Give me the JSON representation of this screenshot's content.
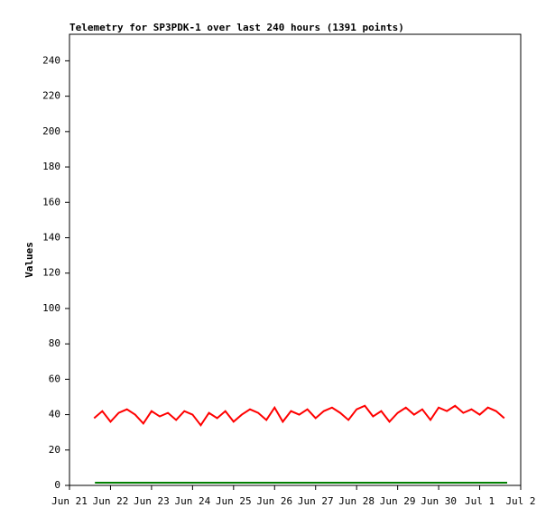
{
  "chart_data": {
    "type": "line",
    "title": "Telemetry for SP3PDK-1 over last 240 hours (1391 points)",
    "y_label": "Values",
    "xlim": [
      21,
      32
    ],
    "ylim": [
      0,
      255
    ],
    "xticks": [
      {
        "value": 21,
        "label": "Jun 21"
      },
      {
        "value": 22,
        "label": "Jun 22"
      },
      {
        "value": 23,
        "label": "Jun 23"
      },
      {
        "value": 24,
        "label": "Jun 24"
      },
      {
        "value": 25,
        "label": "Jun 25"
      },
      {
        "value": 26,
        "label": "Jun 26"
      },
      {
        "value": 27,
        "label": "Jun 27"
      },
      {
        "value": 28,
        "label": "Jun 28"
      },
      {
        "value": 29,
        "label": "Jun 29"
      },
      {
        "value": 30,
        "label": "Jun 30"
      },
      {
        "value": 31,
        "label": "Jul 1"
      },
      {
        "value": 32,
        "label": "Jul 2"
      }
    ],
    "yticks": [
      0,
      20,
      40,
      60,
      80,
      100,
      120,
      140,
      160,
      180,
      200,
      220,
      240
    ],
    "series": [
      {
        "color": "#ff0000",
        "x": [
          21.6,
          21.8,
          22.0,
          22.2,
          22.4,
          22.6,
          22.8,
          23.0,
          23.2,
          23.4,
          23.6,
          23.8,
          24.0,
          24.2,
          24.4,
          24.6,
          24.8,
          25.0,
          25.2,
          25.4,
          25.6,
          25.8,
          26.0,
          26.2,
          26.4,
          26.6,
          26.8,
          27.0,
          27.2,
          27.4,
          27.6,
          27.8,
          28.0,
          28.2,
          28.4,
          28.6,
          28.8,
          29.0,
          29.2,
          29.4,
          29.6,
          29.8,
          30.0,
          30.2,
          30.4,
          30.6,
          30.8,
          31.0,
          31.2,
          31.4,
          31.6
        ],
        "values": [
          38,
          42,
          36,
          41,
          43,
          40,
          35,
          42,
          39,
          41,
          37,
          42,
          40,
          34,
          41,
          38,
          42,
          36,
          40,
          43,
          41,
          37,
          44,
          36,
          42,
          40,
          43,
          38,
          42,
          44,
          41,
          37,
          43,
          45,
          39,
          42,
          36,
          41,
          44,
          40,
          43,
          37,
          44,
          42,
          45,
          41,
          43,
          40,
          44,
          42,
          38
        ]
      },
      {
        "color": "#008000",
        "x": [
          21.62,
          31.67
        ],
        "values": [
          1.5,
          1.5
        ]
      }
    ]
  }
}
